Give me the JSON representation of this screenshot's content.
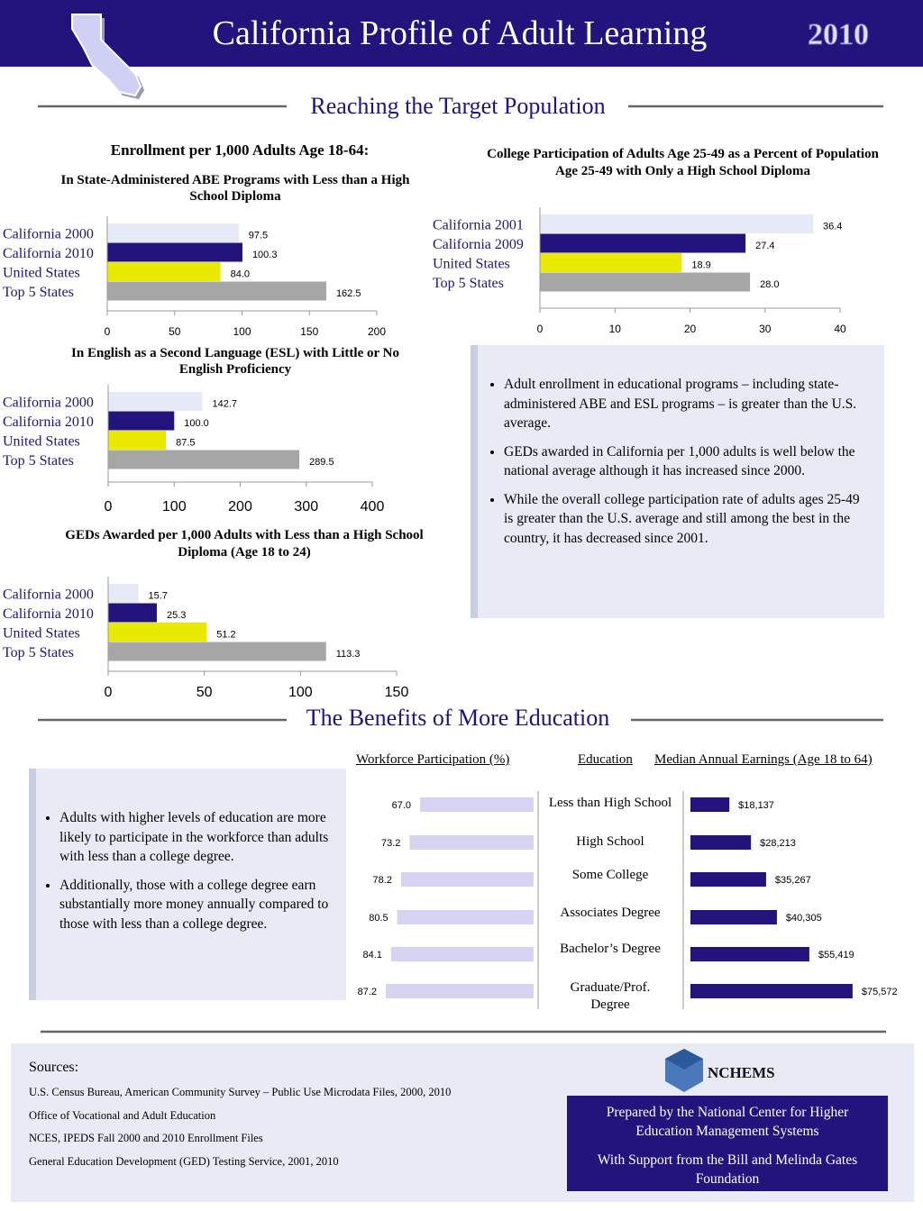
{
  "header": {
    "title": "California Profile of Adult Learning",
    "year": "2010"
  },
  "sections": [
    "Reaching the Target Population",
    "The Benefits of More Education"
  ],
  "chart_data": [
    {
      "type": "bar",
      "orientation": "horizontal",
      "title": "Enrollment per 1,000 Adults Age 18-64:",
      "subtitle": "In State-Administered ABE Programs with Less than a High School Diploma",
      "categories": [
        "California 2000",
        "California 2010",
        "United States",
        "Top 5 States"
      ],
      "values": [
        97.5,
        100.3,
        84.0,
        162.5
      ],
      "value_labels": [
        "97.5",
        "100.3",
        "84.0",
        "162.5"
      ],
      "colors": [
        "#e5eaf6",
        "#22137d",
        "#eaea00",
        "#a6a6a6"
      ],
      "xlim": [
        0,
        200
      ],
      "xticks": [
        0,
        50,
        100,
        150,
        200
      ]
    },
    {
      "type": "bar",
      "orientation": "horizontal",
      "subtitle": "In English as a Second Language (ESL) with Little or No English Proficiency",
      "categories": [
        "California 2000",
        "California 2010",
        "United States",
        "Top 5 States"
      ],
      "values": [
        142.7,
        100.0,
        87.5,
        289.5
      ],
      "value_labels": [
        "142.7",
        "100.0",
        "87.5",
        "289.5"
      ],
      "colors": [
        "#e5eaf6",
        "#22137d",
        "#eaea00",
        "#a6a6a6"
      ],
      "xlim": [
        0,
        400
      ],
      "xticks": [
        0,
        100,
        200,
        300,
        400
      ]
    },
    {
      "type": "bar",
      "orientation": "horizontal",
      "title": "GEDs Awarded per 1,000 Adults with Less than a High School Diploma (Age 18 to 24)",
      "categories": [
        "California 2000",
        "California 2010",
        "United States",
        "Top 5 States"
      ],
      "values": [
        15.7,
        25.3,
        51.2,
        113.3
      ],
      "value_labels": [
        "15.7",
        "25.3",
        "51.2",
        "113.3"
      ],
      "colors": [
        "#e5eaf6",
        "#22137d",
        "#eaea00",
        "#a6a6a6"
      ],
      "xlim": [
        0,
        150
      ],
      "xticks": [
        0,
        50,
        100,
        150
      ]
    },
    {
      "type": "bar",
      "orientation": "horizontal",
      "title": "College Participation of Adults Age 25-49 as a Percent of Population Age 25-49 with Only a High School Diploma",
      "categories": [
        "California 2001",
        "California 2009",
        "United States",
        "Top 5 States"
      ],
      "values": [
        36.4,
        27.4,
        18.9,
        28.0
      ],
      "value_labels": [
        "36.4",
        "27.4",
        "18.9",
        "28.0"
      ],
      "colors": [
        "#e5eaf6",
        "#22137d",
        "#eaea00",
        "#a6a6a6"
      ],
      "xlim": [
        0,
        40
      ],
      "xticks": [
        0,
        10,
        20,
        30,
        40
      ]
    },
    {
      "type": "butterfly",
      "category_title": "Education",
      "categories": [
        "Less than High School",
        "High School",
        "Some College",
        "Associates Degree",
        "Bachelor’s Degree",
        "Graduate/Prof. Degree"
      ],
      "series": [
        {
          "name": "Workforce Participation (%)",
          "color": "#d6d4f2",
          "values": [
            67.0,
            73.2,
            78.2,
            80.5,
            84.1,
            87.2
          ],
          "value_labels": [
            "67.0",
            "73.2",
            "78.2",
            "80.5",
            "84.1",
            "87.2"
          ]
        },
        {
          "name": "Median Annual Earnings (Age 18 to 64)",
          "color": "#22137d",
          "values": [
            18137,
            28213,
            35267,
            40305,
            55419,
            75572
          ],
          "value_labels": [
            "$18,137",
            "$28,213",
            "$35,267",
            "$40,305",
            "$55,419",
            "$75,572"
          ]
        }
      ]
    }
  ],
  "notes": {
    "target": [
      "Adult enrollment in educational programs – including state-administered ABE and ESL programs – is greater than the U.S. average.",
      "GEDs awarded in California per 1,000 adults is well below the national average although it has increased since 2000.",
      "While the overall college participation rate of adults ages 25-49  is greater than the U.S. average and still among the best in the country, it has decreased since 2001."
    ],
    "benefits": [
      "Adults with  higher levels of education are more likely to participate in the workforce than adults with less than a college degree.",
      "Additionally, those with a college degree earn substantially more money annually compared to those with less than a college degree."
    ]
  },
  "sources": {
    "heading": "Sources:",
    "items": [
      "U.S. Census Bureau, American Community Survey – Public Use Microdata Files, 2000, 2010",
      "Office of Vocational and Adult Education",
      "NCES, IPEDS Fall 2000 and 2010 Enrollment Files",
      "General Education Development (GED) Testing Service, 2001, 2010"
    ]
  },
  "credits": {
    "logo": "NCHEMS",
    "prepared": "Prepared by the National Center for Higher Education Management Systems",
    "support": "With Support from the Bill and Melinda Gates Foundation"
  }
}
